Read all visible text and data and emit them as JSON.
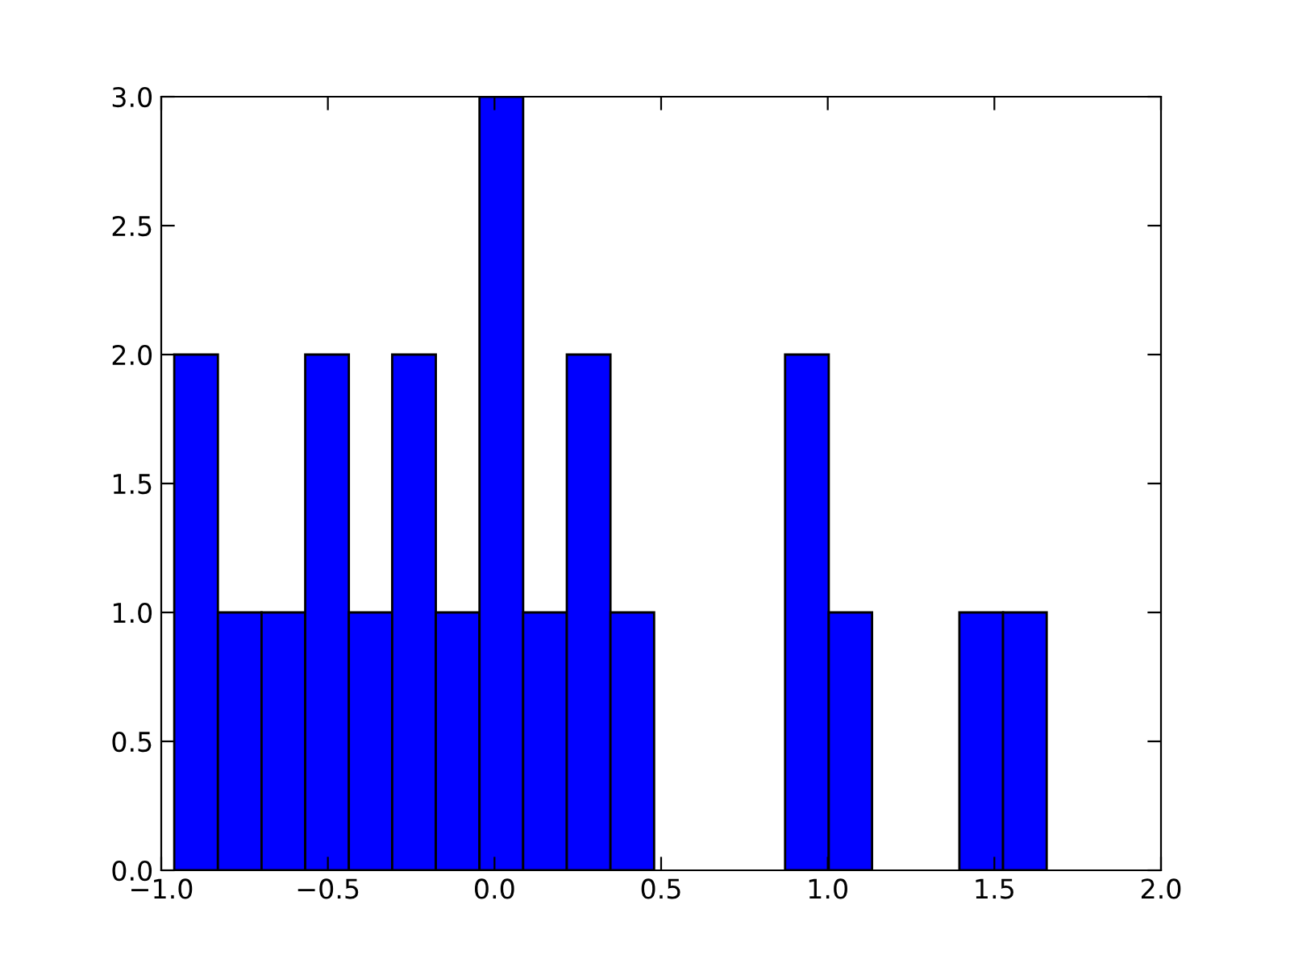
{
  "chart_data": {
    "type": "histogram",
    "bins": [
      -0.961,
      -0.83,
      -0.699,
      -0.568,
      -0.437,
      -0.307,
      -0.176,
      -0.045,
      0.086,
      0.217,
      0.348,
      0.479,
      0.61,
      0.741,
      0.872,
      1.003,
      1.133,
      1.264,
      1.395,
      1.526,
      1.657
    ],
    "values": [
      2,
      1,
      1,
      2,
      1,
      2,
      1,
      3,
      1,
      2,
      1,
      0,
      0,
      0,
      2,
      1,
      0,
      0,
      1,
      1
    ],
    "color": "#0000ff",
    "xlim": [
      -1.0,
      2.0
    ],
    "xticks": [
      {
        "value": -1.0,
        "label": "−1.0"
      },
      {
        "value": -0.5,
        "label": "−0.5"
      },
      {
        "value": 0,
        "label": "0.0"
      },
      0.5,
      {
        "value": 1,
        "label": "1.0"
      },
      1.5,
      {
        "value": 2,
        "label": "2.0"
      }
    ],
    "ylim": [
      0.0,
      3.0
    ],
    "yticks": [
      {
        "value": 0,
        "label": "0.0"
      },
      0.5,
      {
        "value": 1,
        "label": "1.0"
      },
      1.5,
      {
        "value": 2,
        "label": "2.0"
      },
      2.5,
      {
        "value": 3,
        "label": "3.0"
      }
    ],
    "grid": false
  }
}
